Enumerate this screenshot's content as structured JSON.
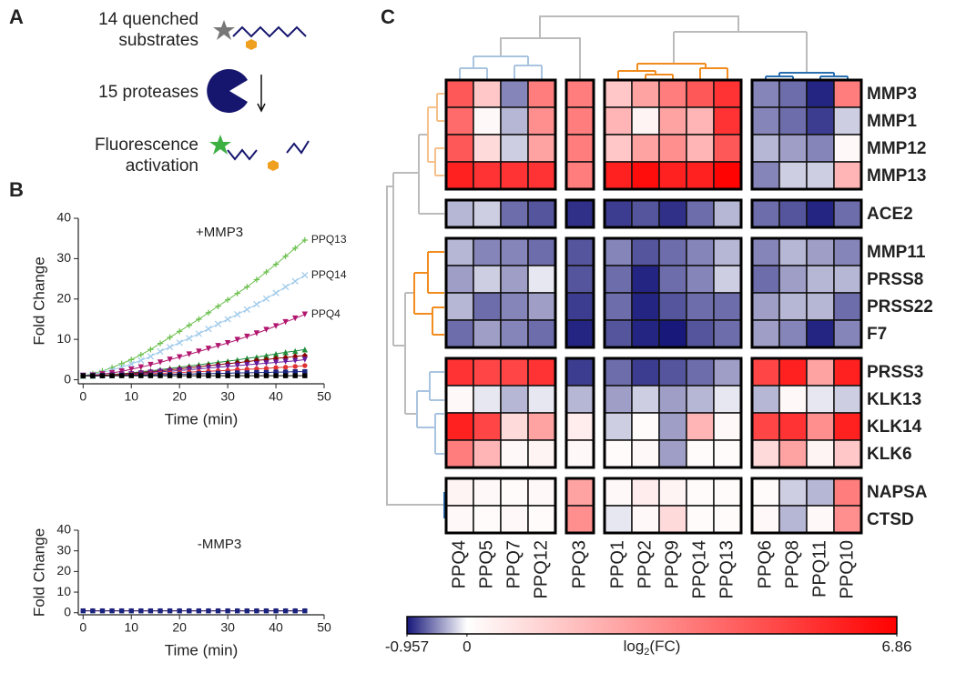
{
  "panel_labels": [
    "A",
    "B",
    "C"
  ],
  "schematic": {
    "steps": [
      {
        "lines": [
          "14 quenched",
          "substrates"
        ]
      },
      {
        "lines": [
          "15 proteases"
        ]
      },
      {
        "lines": [
          "Fluorescence",
          "activation"
        ]
      }
    ]
  },
  "chart_data": [
    {
      "type": "line",
      "title": "+MMP3",
      "x_label": "Time (min)",
      "y_label": "Fold Change",
      "x": [
        0,
        2,
        4,
        6,
        8,
        10,
        12,
        14,
        16,
        18,
        20,
        22,
        24,
        26,
        28,
        30,
        32,
        34,
        36,
        38,
        40,
        42,
        44,
        46
      ],
      "xlim": [
        -1,
        50
      ],
      "xticks": [
        0,
        10,
        20,
        30,
        40,
        50
      ],
      "ylim": [
        -1,
        40
      ],
      "yticks": [
        0,
        10,
        20,
        30,
        40
      ],
      "series": [
        {
          "name": "PPQ13",
          "color": "#6abf4b",
          "marker": "plus",
          "values": [
            1,
            1.5,
            2.2,
            3,
            4,
            5,
            6.2,
            7.5,
            9,
            10.5,
            12,
            13.5,
            15,
            16.6,
            18.2,
            19.8,
            21.4,
            23,
            24.8,
            26.7,
            28.6,
            30.6,
            32.6,
            34.6
          ]
        },
        {
          "name": "PPQ14",
          "color": "#9ec9ea",
          "marker": "x",
          "values": [
            1,
            1.3,
            1.8,
            2.4,
            3.1,
            3.9,
            4.8,
            5.8,
            7,
            8.1,
            9.2,
            10.3,
            11.4,
            12.6,
            13.8,
            15,
            16.2,
            17.4,
            18.7,
            20.1,
            21.5,
            23,
            24.4,
            25.9
          ]
        },
        {
          "name": "PPQ4",
          "color": "#b0166e",
          "marker": "triangle-down",
          "values": [
            1,
            1.1,
            1.4,
            1.7,
            2.1,
            2.6,
            3.1,
            3.7,
            4.3,
            5,
            5.6,
            6.3,
            7,
            7.7,
            8.4,
            9.1,
            9.9,
            10.7,
            11.5,
            12.4,
            13.3,
            14.3,
            15.2,
            16.2
          ]
        },
        {
          "color": "#1e8c3a",
          "marker": "triangle-up",
          "values": [
            1,
            1,
            1.1,
            1.3,
            1.5,
            1.7,
            2,
            2.2,
            2.5,
            2.8,
            3.1,
            3.4,
            3.7,
            4,
            4.3,
            4.6,
            4.9,
            5.3,
            5.6,
            6,
            6.4,
            6.8,
            7.1,
            7.5
          ]
        },
        {
          "color": "#8b0000",
          "marker": "diamond",
          "values": [
            1,
            1,
            1.1,
            1.2,
            1.4,
            1.6,
            1.8,
            2,
            2.2,
            2.5,
            2.7,
            3,
            3.2,
            3.5,
            3.7,
            4,
            4.2,
            4.5,
            4.8,
            5,
            5.3,
            5.5,
            5.8,
            6
          ]
        },
        {
          "color": "#6a1b9a",
          "marker": "triangle-down",
          "values": [
            1,
            1,
            1,
            1.1,
            1.3,
            1.4,
            1.6,
            1.8,
            2,
            2.1,
            2.3,
            2.5,
            2.7,
            2.9,
            3.1,
            3.3,
            3.5,
            3.7,
            3.9,
            4.1,
            4.3,
            4.5,
            4.7,
            5
          ]
        },
        {
          "color": "#e03030",
          "marker": "circle",
          "values": [
            1,
            1,
            1,
            1.1,
            1.2,
            1.3,
            1.4,
            1.5,
            1.6,
            1.7,
            1.8,
            1.9,
            2,
            2.1,
            2.2,
            2.3,
            2.5,
            2.6,
            2.7,
            2.8,
            3,
            3.1,
            3.3,
            3.5
          ]
        },
        {
          "color": "#1a237e",
          "marker": "square",
          "values": [
            1,
            1,
            1,
            1,
            1.1,
            1.1,
            1.2,
            1.2,
            1.3,
            1.3,
            1.4,
            1.4,
            1.5,
            1.5,
            1.6,
            1.6,
            1.7,
            1.7,
            1.8,
            1.8,
            1.9,
            1.9,
            2,
            2
          ]
        },
        {
          "color": "#000000",
          "marker": "square",
          "values": [
            1,
            1,
            1,
            1,
            1,
            1,
            1,
            1,
            1,
            1,
            1,
            1,
            1,
            1,
            1,
            1,
            1,
            1,
            1,
            1,
            1,
            1,
            1,
            1
          ]
        }
      ]
    },
    {
      "type": "line",
      "title": "-MMP3",
      "x_label": "Time (min)",
      "y_label": "Fold Change",
      "x": [
        0,
        2,
        4,
        6,
        8,
        10,
        12,
        14,
        16,
        18,
        20,
        22,
        24,
        26,
        28,
        30,
        32,
        34,
        36,
        38,
        40,
        42,
        44,
        46
      ],
      "xlim": [
        -1,
        50
      ],
      "xticks": [
        0,
        10,
        20,
        30,
        40,
        50
      ],
      "ylim": [
        -1,
        40
      ],
      "yticks": [
        0,
        10,
        20,
        30,
        40
      ],
      "series": [
        {
          "color": "#e03030",
          "marker": "circle",
          "values": [
            1,
            1,
            1,
            1,
            1,
            1,
            1,
            1,
            1,
            1,
            1,
            1,
            1,
            1,
            1,
            1,
            1,
            1,
            1,
            1,
            1,
            1,
            1,
            1
          ]
        },
        {
          "color": "#1a237e",
          "marker": "square",
          "values": [
            0.9,
            0.9,
            0.9,
            0.9,
            0.9,
            0.9,
            0.9,
            0.9,
            0.9,
            0.9,
            0.9,
            0.9,
            0.9,
            0.9,
            0.9,
            0.9,
            0.9,
            0.9,
            0.9,
            0.9,
            0.9,
            0.9,
            0.9,
            0.9
          ]
        }
      ]
    },
    {
      "type": "heatmap",
      "columns": [
        [
          "PPQ4",
          "PPQ5",
          "PPQ7",
          "PPQ12"
        ],
        [
          "PPQ3"
        ],
        [
          "PPQ1",
          "PPQ2",
          "PPQ9",
          "PPQ14",
          "PPQ13"
        ],
        [
          "PPQ6",
          "PPQ8",
          "PPQ11",
          "PPQ10"
        ]
      ],
      "rows": [
        [
          "MMP3",
          "MMP1",
          "MMP12",
          "MMP13"
        ],
        [
          "ACE2"
        ],
        [
          "MMP11",
          "PRSS8",
          "PRSS22",
          "F7"
        ],
        [
          "PRSS3",
          "KLK13",
          "KLK14",
          "KLK6"
        ],
        [
          "NAPSA",
          "CTSD"
        ]
      ],
      "row_colors": [
        [
          "#1e8c3a",
          "#1e8c3a",
          "#1e8c3a",
          "#1e8c3a"
        ],
        [
          "#1e8c3a"
        ],
        [
          "#1e8c3a",
          "#f28c1e",
          "#f28c1e",
          "#f28c1e"
        ],
        [
          "#f28c1e",
          "#f28c1e",
          "#f28c1e",
          "#f28c1e"
        ],
        [
          "#16166e",
          "#16166e"
        ]
      ],
      "values": [
        [
          4.5,
          1.5,
          -0.5,
          3.5,
          3.5,
          1.5,
          2.5,
          3.5,
          4.5,
          5.5,
          -0.5,
          -0.6,
          -0.9,
          3.5
        ],
        [
          4,
          0.2,
          -0.3,
          3,
          3.5,
          2,
          0.3,
          2.5,
          2,
          5.5,
          -0.5,
          -0.6,
          -0.8,
          -0.2
        ],
        [
          4.5,
          1,
          -0.2,
          2.5,
          3.5,
          1.5,
          2.5,
          3,
          2,
          4.5,
          -0.3,
          -0.4,
          -0.5,
          0.2
        ],
        [
          6,
          5.5,
          5.5,
          5.5,
          3.5,
          6,
          6.5,
          6,
          6,
          6.8,
          -0.5,
          -0.2,
          -0.2,
          2
        ],
        [
          -0.3,
          -0.2,
          -0.6,
          -0.7,
          -0.85,
          -0.8,
          -0.7,
          -0.85,
          -0.6,
          -0.3,
          -0.6,
          -0.7,
          -0.9,
          -0.6
        ],
        [
          -0.3,
          -0.5,
          -0.5,
          -0.6,
          -0.7,
          -0.5,
          -0.7,
          -0.6,
          -0.5,
          -0.3,
          -0.5,
          -0.3,
          -0.4,
          -0.5
        ],
        [
          -0.4,
          -0.2,
          -0.4,
          -0.1,
          -0.7,
          -0.6,
          -0.9,
          -0.6,
          -0.5,
          -0.2,
          -0.6,
          -0.4,
          -0.3,
          -0.3
        ],
        [
          -0.3,
          -0.6,
          -0.5,
          -0.4,
          -0.8,
          -0.6,
          -0.9,
          -0.7,
          -0.6,
          -0.6,
          -0.4,
          -0.3,
          -0.3,
          -0.6
        ],
        [
          -0.6,
          -0.4,
          -0.5,
          -0.6,
          -0.9,
          -0.7,
          -0.9,
          -0.95,
          -0.7,
          -0.6,
          -0.4,
          -0.5,
          -0.9,
          -0.5
        ],
        [
          5.5,
          5,
          5,
          5.5,
          -0.8,
          -0.6,
          -0.8,
          -0.7,
          -0.6,
          -0.4,
          5,
          6,
          2.5,
          6
        ],
        [
          0.2,
          -0.1,
          -0.3,
          -0.1,
          -0.3,
          -0.4,
          -0.2,
          -0.4,
          -0.3,
          -0.1,
          -0.3,
          0.2,
          -0.1,
          -0.2
        ],
        [
          6,
          5,
          1,
          2.5,
          0.5,
          -0.2,
          0.1,
          -0.4,
          2,
          0.2,
          5,
          5.5,
          3,
          6
        ],
        [
          3.5,
          2,
          0.2,
          0.3,
          0.2,
          0.1,
          0.2,
          -0.4,
          0.1,
          0.1,
          1,
          2.5,
          0.3,
          1.5
        ],
        [
          0.3,
          0.2,
          0.1,
          0.2,
          2.5,
          0.2,
          0.5,
          0.3,
          0.1,
          0.1,
          0.1,
          -0.2,
          -0.3,
          3.5
        ],
        [
          0.2,
          0.1,
          0.2,
          0.1,
          3,
          -0.1,
          0.2,
          1,
          0.1,
          0.1,
          0.2,
          -0.3,
          0.2,
          3
        ]
      ],
      "colorbar": {
        "label_base": "log",
        "label_sub": "2",
        "label_rest": "(FC)",
        "clim": [
          -0.957,
          6.86
        ],
        "ticks": [
          -0.957,
          0,
          6.86
        ],
        "cmap_stops": [
          -0.957,
          0,
          6.86
        ],
        "cmap_colors": [
          "#16167a",
          "#ffffff",
          "#ff0000"
        ]
      }
    }
  ]
}
